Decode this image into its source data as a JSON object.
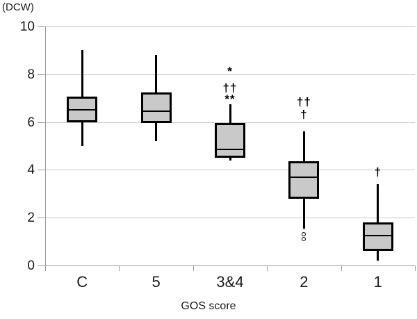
{
  "chart_data": {
    "type": "box",
    "title": "",
    "y_axis": {
      "unit_label": "(DCW)",
      "min": 0,
      "max": 10,
      "tick_step": 2,
      "ticks": [
        0,
        2,
        4,
        6,
        8,
        10
      ],
      "grid": true
    },
    "x_axis": {
      "label": "GOS score",
      "categories": [
        "C",
        "5",
        "3&4",
        "2",
        "1"
      ]
    },
    "legend": "none",
    "boxes": [
      {
        "category": "C",
        "whisker_low": 5.0,
        "q1": 6.0,
        "median": 6.5,
        "q3": 7.05,
        "whisker_high": 9.0,
        "outliers": [],
        "annotations": []
      },
      {
        "category": "5",
        "whisker_low": 5.2,
        "q1": 5.95,
        "median": 6.45,
        "q3": 7.25,
        "whisker_high": 8.8,
        "outliers": [],
        "annotations": []
      },
      {
        "category": "3&4",
        "whisker_low": 4.4,
        "q1": 4.5,
        "median": 4.85,
        "q3": 5.95,
        "whisker_high": 6.75,
        "outliers": [],
        "annotations": [
          {
            "text": "*",
            "value": 8.1
          },
          {
            "text": "††",
            "value": 7.42
          },
          {
            "text": "**",
            "value": 6.95
          }
        ]
      },
      {
        "category": "2",
        "whisker_low": 1.55,
        "q1": 2.8,
        "median": 3.7,
        "q3": 4.35,
        "whisker_high": 5.6,
        "outliers": [
          1.3,
          1.1
        ],
        "annotations": [
          {
            "text": "††",
            "value": 6.83
          },
          {
            "text": "†",
            "value": 6.3
          }
        ]
      },
      {
        "category": "1",
        "whisker_low": 0.2,
        "q1": 0.6,
        "median": 1.25,
        "q3": 1.8,
        "whisker_high": 3.4,
        "outliers": [],
        "annotations": [
          {
            "text": "†",
            "value": 3.9
          }
        ]
      }
    ],
    "colors": {
      "box_fill": "#c9c9c9",
      "box_border": "#000000",
      "median": "#000000",
      "gridline": "#c8c8c8",
      "axis": "#9b9b9b",
      "text": "#1a1a1a",
      "background": "#ffffff"
    }
  }
}
